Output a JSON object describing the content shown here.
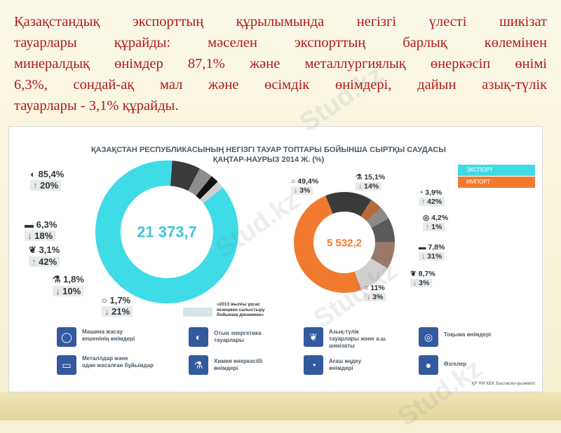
{
  "paragraph_lines": [
    "Қазақстандық экспорттың құрылымында негізгі үлесті шикізат",
    "тауарлары құрайды: мәселен экспорттың барлық көлемінен",
    "минералдық өнімдер 87,1% және металлургиялық өнеркәсіп өнімі",
    "6,3%, сондай-ақ мал және өсімдік өнімдері, дайын азық-түлік",
    "тауарлары - 3,1% құрайды."
  ],
  "watermark": "Stud.kz",
  "infographic": {
    "title_line1": "ҚАЗАҚСТАН РЕСПУБЛИКАСЫНЫҢ НЕГІЗГІ ТАУАР ТОПТАРЫ БОЙЫНША СЫРТҚЫ САУДАСЫ",
    "title_line2": "ҚАҢТАР-НАУРЫЗ 2014 Ж. (%)",
    "legend_export": "ЭКСПОРТ",
    "legend_import": "ИМПОРТ",
    "export_total": "21 373,7",
    "import_total": "5 532,2",
    "note": "«2013 жылғы ұқсас кезеңмен салыстыру бойынша динамика»",
    "source": "ҚР ҰМ КБК Баспасөз-қызметі",
    "colors": {
      "export": "#3fdbe6",
      "import": "#f27a2e",
      "up": "#2ca84a",
      "down": "#d93a2a",
      "icon_bg": "#33599f"
    }
  },
  "chart_data": [
    {
      "type": "pie",
      "name": "export",
      "total": "21 373,7",
      "slices": [
        {
          "icon": "oil-drop-icon",
          "share": "85,4%",
          "change": "20%",
          "direction": "up",
          "value": 85.4
        },
        {
          "icon": "metal-bar-icon",
          "share": "6,3%",
          "change": "18%",
          "direction": "down",
          "value": 6.3
        },
        {
          "icon": "wheat-icon",
          "share": "3,1%",
          "change": "42%",
          "direction": "up",
          "value": 3.1
        },
        {
          "icon": "flask-icon",
          "share": "1,8%",
          "change": "10%",
          "direction": "down",
          "value": 1.8
        },
        {
          "icon": "machine-icon",
          "share": "1,7%",
          "change": "21%",
          "direction": "down",
          "value": 1.7
        }
      ]
    },
    {
      "type": "pie",
      "name": "import",
      "total": "5 532,2",
      "slices": [
        {
          "icon": "machine-icon",
          "share": "49,4%",
          "change": "3%",
          "direction": "down",
          "value": 49.4
        },
        {
          "icon": "flask-icon",
          "share": "15,1%",
          "change": "14%",
          "direction": "down",
          "value": 15.1
        },
        {
          "icon": "wood-icon",
          "share": "3,9%",
          "change": "42%",
          "direction": "up",
          "value": 3.9
        },
        {
          "icon": "textile-icon",
          "share": "4,2%",
          "change": "1%",
          "direction": "up",
          "value": 4.2
        },
        {
          "icon": "metal-bar-icon",
          "share": "7,8%",
          "change": "31%",
          "direction": "down",
          "value": 7.8
        },
        {
          "icon": "wheat-icon",
          "share": "8,7%",
          "change": "3%",
          "direction": "down",
          "value": 8.7
        },
        {
          "icon": "other-icon",
          "share": "11%",
          "change": "3%",
          "direction": "down",
          "value": 11
        }
      ]
    }
  ],
  "category_legend": [
    {
      "icon": "machine-icon",
      "label_line1": "Машина жасау",
      "label_line2": "кешенінің өнімдері"
    },
    {
      "icon": "oil-drop-icon",
      "label_line1": "Отын энергетика",
      "label_line2": "тауарлары"
    },
    {
      "icon": "wheat-icon",
      "label_line1": "Азық-түлік",
      "label_line2": "тауарлары және а.ш. шикізаты"
    },
    {
      "icon": "textile-icon",
      "label_line1": "Тоқыма өнімдері",
      "label_line2": ""
    },
    {
      "icon": "metal-bar-icon",
      "label_line1": "Металлдар және",
      "label_line2": "одан жасалған бұйымдар"
    },
    {
      "icon": "flask-icon",
      "label_line1": "Химия өнеркәсібі",
      "label_line2": "өнімдері"
    },
    {
      "icon": "wood-icon",
      "label_line1": "Ағаш өңдеу",
      "label_line2": "өнімдері"
    },
    {
      "icon": "other-icon",
      "label_line1": "Өзгелер",
      "label_line2": ""
    }
  ]
}
